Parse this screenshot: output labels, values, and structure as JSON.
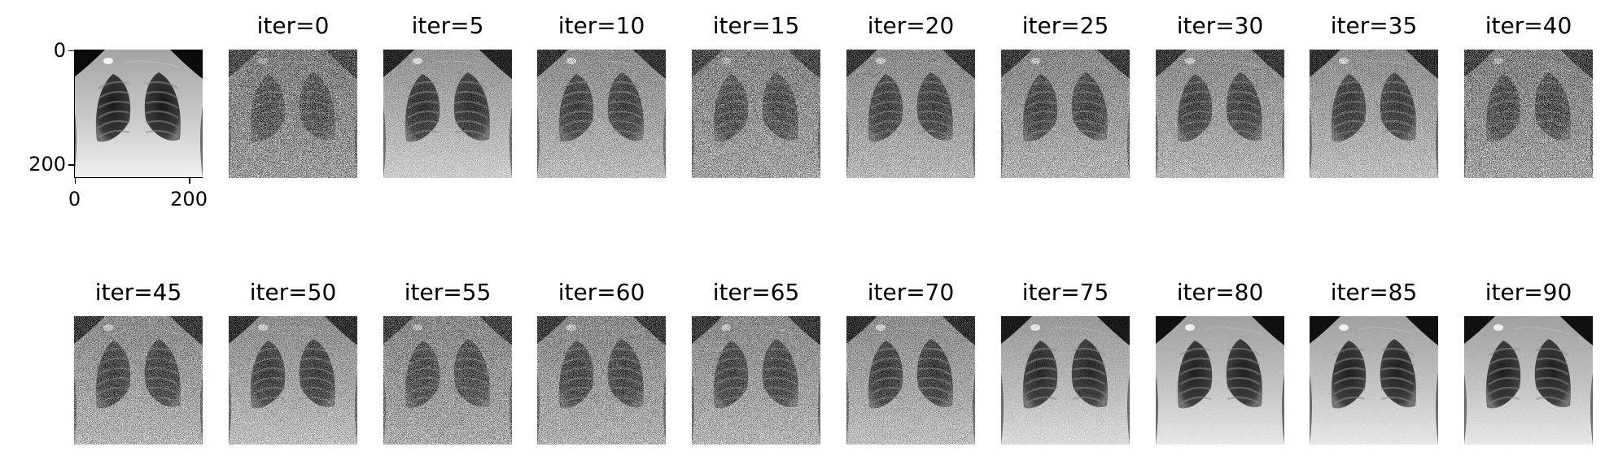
{
  "reference_panel": {
    "image": "chest-xray-reference",
    "x_ticks": [
      "0",
      "200"
    ],
    "y_ticks": [
      "0",
      "200"
    ]
  },
  "iterations": [
    {
      "title": "iter=0",
      "noise": 0.62,
      "brightness": 0.46
    },
    {
      "title": "iter=5",
      "noise": 0.24,
      "brightness": 0.7
    },
    {
      "title": "iter=10",
      "noise": 0.38,
      "brightness": 0.62
    },
    {
      "title": "iter=15",
      "noise": 0.58,
      "brightness": 0.58
    },
    {
      "title": "iter=20",
      "noise": 0.4,
      "brightness": 0.62
    },
    {
      "title": "iter=25",
      "noise": 0.44,
      "brightness": 0.58
    },
    {
      "title": "iter=30",
      "noise": 0.42,
      "brightness": 0.62
    },
    {
      "title": "iter=35",
      "noise": 0.34,
      "brightness": 0.64
    },
    {
      "title": "iter=40",
      "noise": 0.56,
      "brightness": 0.52
    },
    {
      "title": "iter=45",
      "noise": 0.44,
      "brightness": 0.66
    },
    {
      "title": "iter=50",
      "noise": 0.36,
      "brightness": 0.66
    },
    {
      "title": "iter=55",
      "noise": 0.52,
      "brightness": 0.6
    },
    {
      "title": "iter=60",
      "noise": 0.46,
      "brightness": 0.6
    },
    {
      "title": "iter=65",
      "noise": 0.44,
      "brightness": 0.62
    },
    {
      "title": "iter=70",
      "noise": 0.34,
      "brightness": 0.64
    },
    {
      "title": "iter=75",
      "noise": 0.14,
      "brightness": 0.74
    },
    {
      "title": "iter=80",
      "noise": 0.06,
      "brightness": 0.8
    },
    {
      "title": "iter=85",
      "noise": 0.06,
      "brightness": 0.8
    },
    {
      "title": "iter=90",
      "noise": 0.06,
      "brightness": 0.8
    }
  ],
  "colors": {
    "background": "#ffffff",
    "text": "#000000",
    "image_black": "#000000",
    "image_white": "#ffffff"
  }
}
